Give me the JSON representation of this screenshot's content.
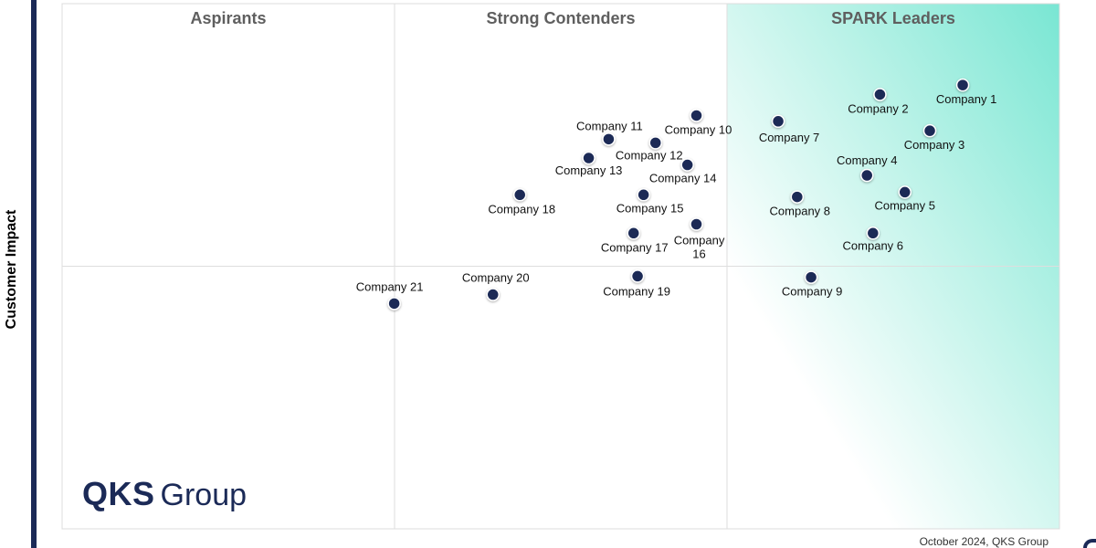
{
  "chart_data": {
    "type": "scatter",
    "ylabel": "Customer Impact",
    "xlabel": "",
    "quadrants": [
      "Aspirants",
      "Strong Contenders",
      "SPARK Leaders"
    ],
    "points": [
      {
        "name": "Company 1",
        "x": 0.903,
        "y": 0.845
      },
      {
        "name": "Company 2",
        "x": 0.82,
        "y": 0.827
      },
      {
        "name": "Company 3",
        "x": 0.87,
        "y": 0.758
      },
      {
        "name": "Company 4",
        "x": 0.807,
        "y": 0.673
      },
      {
        "name": "Company 5",
        "x": 0.845,
        "y": 0.641
      },
      {
        "name": "Company 6",
        "x": 0.813,
        "y": 0.563
      },
      {
        "name": "Company 7",
        "x": 0.718,
        "y": 0.776
      },
      {
        "name": "Company 8",
        "x": 0.737,
        "y": 0.632
      },
      {
        "name": "Company 9",
        "x": 0.751,
        "y": 0.479
      },
      {
        "name": "Company 10",
        "x": 0.636,
        "y": 0.787
      },
      {
        "name": "Company 11",
        "x": 0.548,
        "y": 0.742
      },
      {
        "name": "Company 12",
        "x": 0.595,
        "y": 0.735
      },
      {
        "name": "Company 13",
        "x": 0.528,
        "y": 0.706
      },
      {
        "name": "Company 14",
        "x": 0.627,
        "y": 0.693
      },
      {
        "name": "Company 15",
        "x": 0.583,
        "y": 0.636
      },
      {
        "name": "Company 16",
        "x": 0.636,
        "y": 0.58
      },
      {
        "name": "Company 17",
        "x": 0.573,
        "y": 0.563
      },
      {
        "name": "Company 18",
        "x": 0.459,
        "y": 0.636
      },
      {
        "name": "Company 19",
        "x": 0.577,
        "y": 0.481
      },
      {
        "name": "Company 20",
        "x": 0.432,
        "y": 0.446
      },
      {
        "name": "Company 21",
        "x": 0.333,
        "y": 0.429
      }
    ],
    "xlim": [
      0,
      1
    ],
    "ylim": [
      0,
      1
    ],
    "grid": true,
    "point_color": "#1b2a57",
    "leader_gradient": [
      "#7fe7d6",
      "#ffffff"
    ]
  },
  "branding": {
    "logo_strong": "QKS",
    "logo_light": "Group"
  },
  "footer": "October 2024, QKS Group",
  "colors": {
    "accent": "#1b2a57",
    "quadrant_title": "#5f5f5f"
  }
}
